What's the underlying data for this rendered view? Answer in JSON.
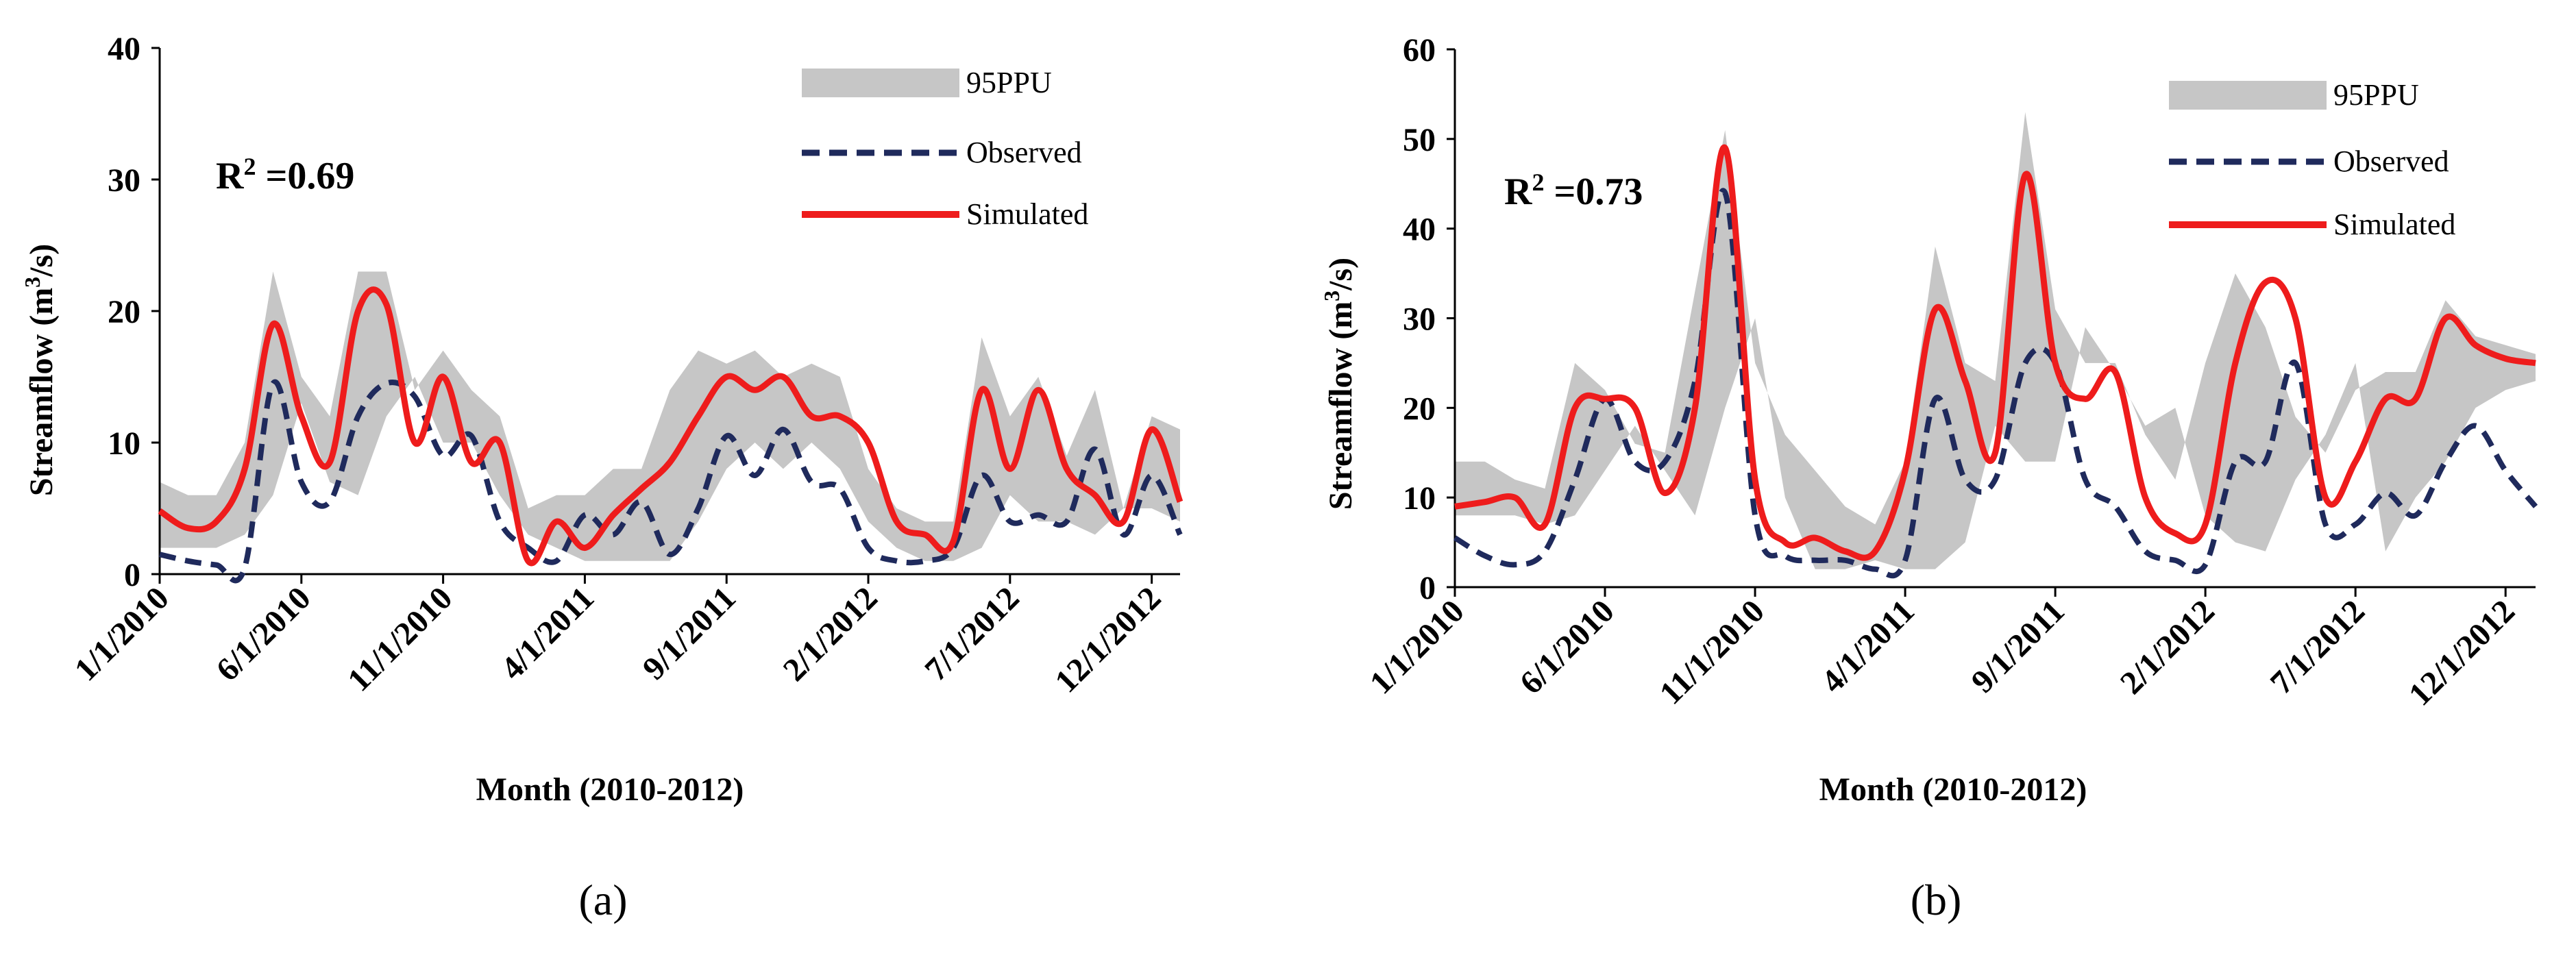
{
  "chart_data": [
    {
      "type": "line",
      "panel_label": "(a)",
      "ylabel": "Streamflow (m³/s)",
      "ylabel_parts": {
        "main": "Streamflow (m",
        "sup": "3",
        "tail": "/s)"
      },
      "xlabel": "Month (2010-2012)",
      "ylim": [
        0,
        40
      ],
      "yticks": [
        0,
        10,
        20,
        30,
        40
      ],
      "xticks": [
        "1/1/2010",
        "6/1/2010",
        "11/1/2010",
        "4/1/2011",
        "9/1/2011",
        "2/1/2012",
        "7/1/2012",
        "12/1/2012"
      ],
      "xtick_index": [
        0,
        5,
        10,
        15,
        20,
        25,
        30,
        35
      ],
      "annotation": {
        "label": "R",
        "sup": "2",
        "value": " =0.69"
      },
      "legend": {
        "band": "95PPU",
        "observed": "Observed",
        "simulated": "Simulated"
      },
      "ppu_lower": [
        2,
        2,
        2,
        3,
        6,
        13,
        7,
        6,
        12,
        15,
        10,
        10,
        6,
        3,
        2,
        1,
        1,
        1,
        1,
        4,
        8,
        10,
        8,
        10,
        8,
        4,
        2,
        1,
        1,
        2,
        6,
        4,
        4,
        3,
        5,
        5,
        4
      ],
      "ppu_upper": [
        7,
        6,
        6,
        10,
        23,
        15,
        12,
        23,
        23,
        14,
        17,
        14,
        12,
        5,
        6,
        6,
        8,
        8,
        14,
        17,
        16,
        17,
        15,
        16,
        15,
        8,
        5,
        4,
        4,
        18,
        12,
        15,
        9,
        14,
        5,
        12,
        11
      ],
      "observed": [
        1.5,
        1,
        0.7,
        0.5,
        14.5,
        7,
        5.5,
        12,
        14.5,
        13.5,
        9,
        10.5,
        4,
        2,
        1,
        4.5,
        3,
        5.5,
        1.5,
        5,
        10.5,
        7.5,
        11,
        7,
        6.5,
        2,
        1,
        1,
        2,
        7.5,
        4,
        4.5,
        4,
        9.5,
        3,
        7.5,
        3
      ],
      "simulated": [
        4.8,
        3.5,
        4,
        8,
        19,
        12,
        8.5,
        20,
        20.5,
        10,
        15,
        8.5,
        10,
        1,
        4,
        2,
        4.5,
        6.5,
        8.5,
        12,
        15,
        14,
        15,
        12,
        12,
        10,
        4,
        3,
        2.5,
        14,
        8,
        14,
        8,
        6,
        4,
        11,
        5.5
      ]
    },
    {
      "type": "line",
      "panel_label": "(b)",
      "ylabel": "Streamflow (m³/s)",
      "ylabel_parts": {
        "main": "Streamflow (m",
        "sup": "3",
        "tail": "/s)"
      },
      "xlabel": "Month (2010-2012)",
      "ylim": [
        0,
        60
      ],
      "yticks": [
        0,
        10,
        20,
        30,
        40,
        50,
        60
      ],
      "xticks": [
        "1/1/2010",
        "6/1/2010",
        "11/1/2010",
        "4/1/2011",
        "9/1/2011",
        "2/1/2012",
        "7/1/2012",
        "12/1/2012"
      ],
      "xtick_index": [
        0,
        5,
        10,
        15,
        20,
        25,
        30,
        35
      ],
      "annotation": {
        "label": "R",
        "sup": "2",
        "value": " =0.73"
      },
      "legend": {
        "band": "95PPU",
        "observed": "Observed",
        "simulated": "Simulated"
      },
      "ppu_lower": [
        8,
        8,
        8,
        7,
        8,
        13,
        18,
        13,
        8,
        20,
        30,
        10,
        2,
        2,
        3,
        2,
        2,
        5,
        18,
        14,
        14,
        29,
        24,
        18,
        20,
        8,
        5,
        4,
        12,
        17,
        25,
        4,
        10,
        14,
        20,
        22,
        23
      ],
      "ppu_upper": [
        14,
        14,
        12,
        11,
        25,
        22,
        16,
        15,
        33,
        51,
        25,
        17,
        13,
        9,
        7,
        14,
        38,
        25,
        23,
        53,
        31,
        25,
        25,
        17,
        12,
        25,
        35,
        29,
        19,
        15,
        22,
        24,
        24,
        32,
        28,
        27,
        26
      ],
      "observed": [
        5.5,
        3.5,
        2.5,
        4,
        12,
        21,
        14,
        14,
        23,
        44,
        8,
        3.5,
        3,
        3,
        2,
        3,
        21,
        12,
        12,
        25,
        25,
        12,
        9,
        4,
        3,
        2.5,
        14,
        14,
        25,
        7,
        7,
        10.5,
        8,
        14,
        18,
        13,
        9
      ],
      "simulated": [
        9,
        9.5,
        10,
        7,
        20,
        21,
        20,
        10.5,
        20,
        49,
        12,
        5,
        5.5,
        4,
        4,
        13,
        31,
        23,
        15,
        46,
        25,
        21,
        24,
        10,
        6,
        7,
        25,
        34,
        30,
        10,
        14,
        21,
        21,
        30,
        27,
        25.5,
        25
      ]
    }
  ],
  "colors": {
    "band": "#c6c6c6",
    "observed": "#1f2a5c",
    "simulated": "#ee1c1c",
    "axis": "#000000"
  }
}
